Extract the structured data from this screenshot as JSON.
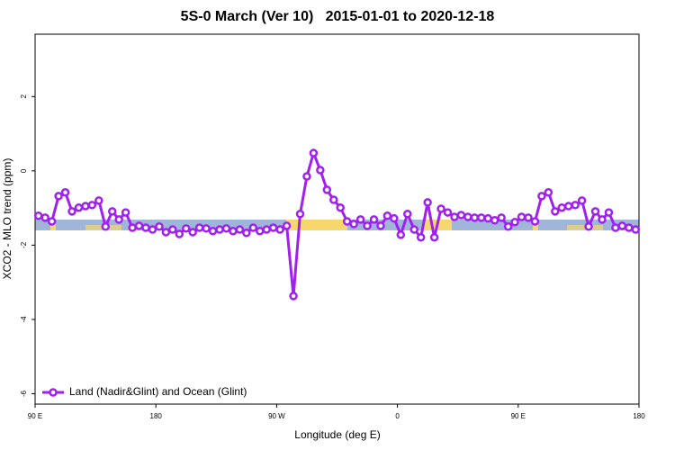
{
  "chart_data": {
    "type": "line",
    "title": "5S-0 March (Ver 10)   2015-01-01 to 2020-12-18",
    "x_label": "Longitude (deg E)",
    "y_label": "XCO2 - MLO trend (ppm)",
    "xlim": [
      90,
      540
    ],
    "ylim": [
      -6.28,
      3.68
    ],
    "xticks": [
      {
        "value": 90,
        "label": "90 E"
      },
      180,
      {
        "value": 270,
        "label": "90 W"
      },
      {
        "value": 360,
        "label": "0"
      },
      {
        "value": 450,
        "label": "90 E"
      },
      {
        "value": 540,
        "label": "180"
      }
    ],
    "yticks": [
      -6,
      -4,
      -2,
      0,
      2
    ],
    "legend": "lower left",
    "x": [
      92.5,
      97.5,
      102.5,
      107.5,
      112.5,
      117.5,
      122.5,
      127.5,
      132.5,
      137.5,
      142.5,
      147.5,
      152.5,
      157.5,
      162.5,
      167.5,
      172.5,
      177.5,
      182.5,
      187.5,
      192.5,
      197.5,
      202.5,
      207.5,
      212.5,
      217.5,
      222.5,
      227.5,
      232.5,
      237.5,
      242.5,
      247.5,
      252.5,
      257.5,
      262.5,
      267.5,
      272.5,
      277.5,
      282.5,
      287.5,
      292.5,
      297.5,
      302.5,
      307.5,
      312.5,
      317.5,
      322.5,
      327.5,
      332.5,
      337.5,
      342.5,
      347.5,
      352.5,
      357.5,
      362.5,
      367.5,
      372.5,
      377.5,
      382.5,
      387.5,
      392.5,
      397.5,
      402.5,
      407.5,
      412.5,
      417.5,
      422.5,
      427.5,
      432.5,
      437.5,
      442.5,
      447.5,
      452.5,
      457.5,
      462.5,
      467.5,
      472.5,
      477.5,
      482.5,
      487.5,
      492.5,
      497.5,
      502.5,
      507.5,
      512.5,
      517.5,
      522.5,
      527.5,
      532.5,
      537.5
    ],
    "series": [
      {
        "name": "Land (Nadir&Glint) and Ocean (Glint)",
        "color": "#a020f0",
        "values": [
          -1.21,
          -1.26,
          -1.36,
          -0.68,
          -0.58,
          -1.09,
          -0.99,
          -0.95,
          -0.92,
          -0.8,
          -1.5,
          -1.09,
          -1.31,
          -1.12,
          -1.53,
          -1.48,
          -1.53,
          -1.58,
          -1.5,
          -1.65,
          -1.58,
          -1.7,
          -1.55,
          -1.65,
          -1.53,
          -1.55,
          -1.62,
          -1.58,
          -1.55,
          -1.62,
          -1.58,
          -1.67,
          -1.53,
          -1.62,
          -1.58,
          -1.53,
          -1.58,
          -1.48,
          -3.37,
          -1.16,
          -0.15,
          0.48,
          0.02,
          -0.51,
          -0.78,
          -0.99,
          -1.36,
          -1.43,
          -1.31,
          -1.48,
          -1.31,
          -1.48,
          -1.21,
          -1.28,
          -1.72,
          -1.16,
          -1.58,
          -1.79,
          -0.85,
          -1.79,
          -1.02,
          -1.12,
          -1.24,
          -1.19,
          -1.24,
          -1.26,
          -1.26,
          -1.28,
          -1.33,
          -1.26,
          -1.5,
          -1.38,
          -1.24,
          -1.26,
          -1.36,
          -0.68,
          -0.58,
          -1.09,
          -0.99,
          -0.95,
          -0.92,
          -0.8,
          -1.5,
          -1.09,
          -1.31,
          -1.12,
          -1.53,
          -1.48,
          -1.53,
          -1.58
        ]
      }
    ]
  }
}
